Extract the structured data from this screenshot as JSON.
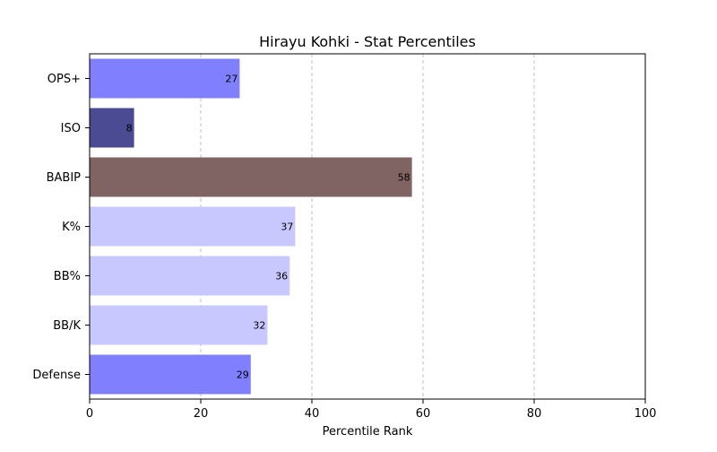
{
  "chart_data": {
    "type": "bar",
    "orientation": "horizontal",
    "title": "Hirayu Kohki - Stat Percentiles",
    "xlabel": "Percentile Rank",
    "ylabel": "",
    "xlim": [
      0,
      100
    ],
    "x_ticks": [
      "0",
      "20",
      "40",
      "60",
      "80",
      "100"
    ],
    "grid": "x-dashed",
    "categories": [
      "OPS+",
      "ISO",
      "BABIP",
      "K%",
      "BB%",
      "BB/K",
      "Defense"
    ],
    "values": [
      27,
      8,
      58,
      37,
      36,
      32,
      29
    ],
    "colors": [
      "#8080ff",
      "#4b4b94",
      "#806464",
      "#c8c8ff",
      "#c8c8ff",
      "#c8c8ff",
      "#8080ff"
    ],
    "value_labels": [
      "27",
      "8",
      "58",
      "37",
      "36",
      "32",
      "29"
    ]
  }
}
